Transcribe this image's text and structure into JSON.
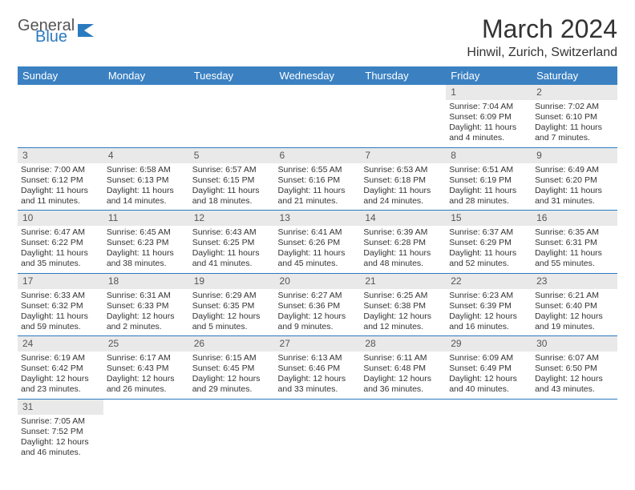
{
  "logo": {
    "text1": "General",
    "text2": "Blue",
    "icon_color": "#2a7ac0"
  },
  "title": "March 2024",
  "location": "Hinwil, Zurich, Switzerland",
  "theme": {
    "header_bg": "#3b81c2",
    "header_fg": "#ffffff",
    "daynum_bg": "#e9e9e9",
    "rule_color": "#2a7ac0",
    "body_text": "#333333"
  },
  "weekdays": [
    "Sunday",
    "Monday",
    "Tuesday",
    "Wednesday",
    "Thursday",
    "Friday",
    "Saturday"
  ],
  "weeks": [
    {
      "nums": [
        "",
        "",
        "",
        "",
        "",
        "1",
        "2"
      ],
      "cells": [
        null,
        null,
        null,
        null,
        null,
        {
          "sunrise": "7:04 AM",
          "sunset": "6:09 PM",
          "daylight": "11 hours and 4 minutes."
        },
        {
          "sunrise": "7:02 AM",
          "sunset": "6:10 PM",
          "daylight": "11 hours and 7 minutes."
        }
      ]
    },
    {
      "nums": [
        "3",
        "4",
        "5",
        "6",
        "7",
        "8",
        "9"
      ],
      "cells": [
        {
          "sunrise": "7:00 AM",
          "sunset": "6:12 PM",
          "daylight": "11 hours and 11 minutes."
        },
        {
          "sunrise": "6:58 AM",
          "sunset": "6:13 PM",
          "daylight": "11 hours and 14 minutes."
        },
        {
          "sunrise": "6:57 AM",
          "sunset": "6:15 PM",
          "daylight": "11 hours and 18 minutes."
        },
        {
          "sunrise": "6:55 AM",
          "sunset": "6:16 PM",
          "daylight": "11 hours and 21 minutes."
        },
        {
          "sunrise": "6:53 AM",
          "sunset": "6:18 PM",
          "daylight": "11 hours and 24 minutes."
        },
        {
          "sunrise": "6:51 AM",
          "sunset": "6:19 PM",
          "daylight": "11 hours and 28 minutes."
        },
        {
          "sunrise": "6:49 AM",
          "sunset": "6:20 PM",
          "daylight": "11 hours and 31 minutes."
        }
      ]
    },
    {
      "nums": [
        "10",
        "11",
        "12",
        "13",
        "14",
        "15",
        "16"
      ],
      "cells": [
        {
          "sunrise": "6:47 AM",
          "sunset": "6:22 PM",
          "daylight": "11 hours and 35 minutes."
        },
        {
          "sunrise": "6:45 AM",
          "sunset": "6:23 PM",
          "daylight": "11 hours and 38 minutes."
        },
        {
          "sunrise": "6:43 AM",
          "sunset": "6:25 PM",
          "daylight": "11 hours and 41 minutes."
        },
        {
          "sunrise": "6:41 AM",
          "sunset": "6:26 PM",
          "daylight": "11 hours and 45 minutes."
        },
        {
          "sunrise": "6:39 AM",
          "sunset": "6:28 PM",
          "daylight": "11 hours and 48 minutes."
        },
        {
          "sunrise": "6:37 AM",
          "sunset": "6:29 PM",
          "daylight": "11 hours and 52 minutes."
        },
        {
          "sunrise": "6:35 AM",
          "sunset": "6:31 PM",
          "daylight": "11 hours and 55 minutes."
        }
      ]
    },
    {
      "nums": [
        "17",
        "18",
        "19",
        "20",
        "21",
        "22",
        "23"
      ],
      "cells": [
        {
          "sunrise": "6:33 AM",
          "sunset": "6:32 PM",
          "daylight": "11 hours and 59 minutes."
        },
        {
          "sunrise": "6:31 AM",
          "sunset": "6:33 PM",
          "daylight": "12 hours and 2 minutes."
        },
        {
          "sunrise": "6:29 AM",
          "sunset": "6:35 PM",
          "daylight": "12 hours and 5 minutes."
        },
        {
          "sunrise": "6:27 AM",
          "sunset": "6:36 PM",
          "daylight": "12 hours and 9 minutes."
        },
        {
          "sunrise": "6:25 AM",
          "sunset": "6:38 PM",
          "daylight": "12 hours and 12 minutes."
        },
        {
          "sunrise": "6:23 AM",
          "sunset": "6:39 PM",
          "daylight": "12 hours and 16 minutes."
        },
        {
          "sunrise": "6:21 AM",
          "sunset": "6:40 PM",
          "daylight": "12 hours and 19 minutes."
        }
      ]
    },
    {
      "nums": [
        "24",
        "25",
        "26",
        "27",
        "28",
        "29",
        "30"
      ],
      "cells": [
        {
          "sunrise": "6:19 AM",
          "sunset": "6:42 PM",
          "daylight": "12 hours and 23 minutes."
        },
        {
          "sunrise": "6:17 AM",
          "sunset": "6:43 PM",
          "daylight": "12 hours and 26 minutes."
        },
        {
          "sunrise": "6:15 AM",
          "sunset": "6:45 PM",
          "daylight": "12 hours and 29 minutes."
        },
        {
          "sunrise": "6:13 AM",
          "sunset": "6:46 PM",
          "daylight": "12 hours and 33 minutes."
        },
        {
          "sunrise": "6:11 AM",
          "sunset": "6:48 PM",
          "daylight": "12 hours and 36 minutes."
        },
        {
          "sunrise": "6:09 AM",
          "sunset": "6:49 PM",
          "daylight": "12 hours and 40 minutes."
        },
        {
          "sunrise": "6:07 AM",
          "sunset": "6:50 PM",
          "daylight": "12 hours and 43 minutes."
        }
      ]
    },
    {
      "nums": [
        "31",
        "",
        "",
        "",
        "",
        "",
        ""
      ],
      "cells": [
        {
          "sunrise": "7:05 AM",
          "sunset": "7:52 PM",
          "daylight": "12 hours and 46 minutes."
        },
        null,
        null,
        null,
        null,
        null,
        null
      ]
    }
  ],
  "labels": {
    "sunrise": "Sunrise:",
    "sunset": "Sunset:",
    "daylight": "Daylight:"
  }
}
